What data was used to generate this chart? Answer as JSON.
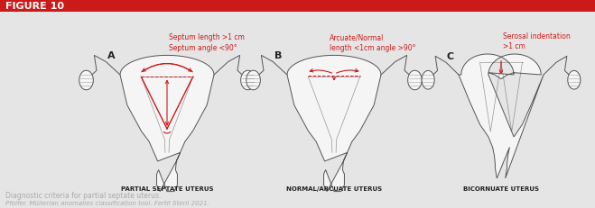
{
  "title": "FIGURE 10",
  "title_bg": "#cc1a1a",
  "title_text_color": "#ffffff",
  "background_color": "#e5e5e5",
  "annotations_A_line1": "Septum length >1 cm",
  "annotations_A_line2": "Septum angle <90°",
  "annotations_B_line1": "Arcuate/Normal",
  "annotations_B_line2": "length <1cm angle >90°",
  "annotations_C_line1": "Serosal indentation",
  "annotations_C_line2": ">1 cm",
  "label_A": "PARTIAL SEPTATE UTERUS",
  "label_B": "NORMAL/ARCUATE UTERUS",
  "label_C": "BICORNUATE UTERUS",
  "caption1": "Diagnostic criteria for partial septate uterus.",
  "caption2": "Pfeifer. Müllerian anomalies classification tool. Fertil Steril 2021.",
  "annotation_color": "#cc1a1a",
  "uterus_color": "#555555",
  "uterus_fill": "#f5f5f5",
  "label_color": "#222222",
  "caption1_color": "#aaaaaa",
  "caption2_color": "#aaaaaa"
}
